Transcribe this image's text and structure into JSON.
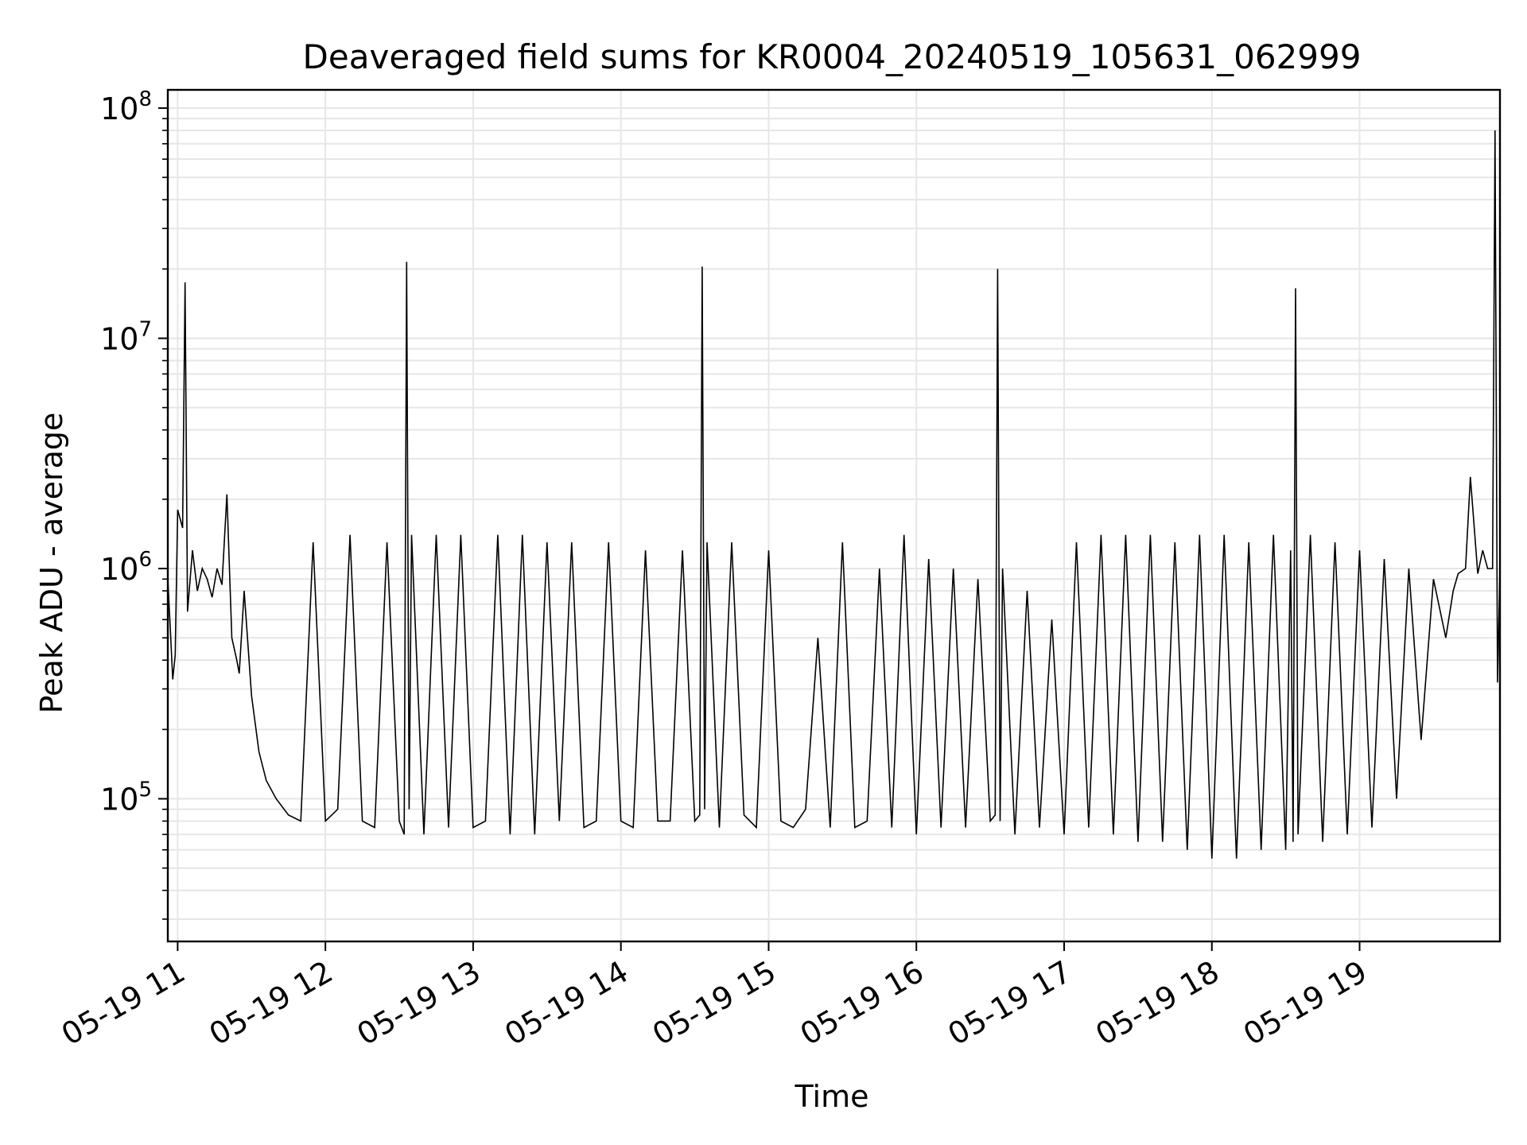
{
  "chart_data": {
    "type": "line",
    "title": "Deaveraged field sums for KR0004_20240519_105631_062999",
    "xlabel": "Time",
    "ylabel": "Peak ADU - average",
    "yscale": "log",
    "ylim": [
      24000,
      120000000
    ],
    "xlim": [
      "2024-05-19 10:56",
      "2024-05-19 19:57"
    ],
    "grid": true,
    "line_color": "#000000",
    "x_ticks": [
      {
        "value": "2024-05-19 11:00",
        "label": "05-19 11"
      },
      {
        "value": "2024-05-19 12:00",
        "label": "05-19 12"
      },
      {
        "value": "2024-05-19 13:00",
        "label": "05-19 13"
      },
      {
        "value": "2024-05-19 14:00",
        "label": "05-19 14"
      },
      {
        "value": "2024-05-19 15:00",
        "label": "05-19 15"
      },
      {
        "value": "2024-05-19 16:00",
        "label": "05-19 16"
      },
      {
        "value": "2024-05-19 17:00",
        "label": "05-19 17"
      },
      {
        "value": "2024-05-19 18:00",
        "label": "05-19 18"
      },
      {
        "value": "2024-05-19 19:00",
        "label": "05-19 19"
      }
    ],
    "y_ticks": [
      {
        "value": 100000,
        "base": "10",
        "exp": "5"
      },
      {
        "value": 1000000,
        "base": "10",
        "exp": "6"
      },
      {
        "value": 10000000,
        "base": "10",
        "exp": "7"
      },
      {
        "value": 100000000,
        "base": "10",
        "exp": "8"
      }
    ],
    "series": [
      {
        "name": "",
        "x": [
          "2024-05-19 10:56",
          "2024-05-19 10:57",
          "2024-05-19 10:58",
          "2024-05-19 10:59",
          "2024-05-19 11:00",
          "2024-05-19 11:02",
          "2024-05-19 11:03",
          "2024-05-19 11:04",
          "2024-05-19 11:06",
          "2024-05-19 11:08",
          "2024-05-19 11:10",
          "2024-05-19 11:12",
          "2024-05-19 11:14",
          "2024-05-19 11:16",
          "2024-05-19 11:18",
          "2024-05-19 11:20",
          "2024-05-19 11:22",
          "2024-05-19 11:24",
          "2024-05-19 11:25",
          "2024-05-19 11:27",
          "2024-05-19 11:30",
          "2024-05-19 11:33",
          "2024-05-19 11:36",
          "2024-05-19 11:40",
          "2024-05-19 11:45",
          "2024-05-19 11:50",
          "2024-05-19 11:55",
          "2024-05-19 12:00",
          "2024-05-19 12:05",
          "2024-05-19 12:10",
          "2024-05-19 12:15",
          "2024-05-19 12:20",
          "2024-05-19 12:25",
          "2024-05-19 12:30",
          "2024-05-19 12:32",
          "2024-05-19 12:33",
          "2024-05-19 12:34",
          "2024-05-19 12:35",
          "2024-05-19 12:40",
          "2024-05-19 12:45",
          "2024-05-19 12:50",
          "2024-05-19 12:55",
          "2024-05-19 13:00",
          "2024-05-19 13:05",
          "2024-05-19 13:10",
          "2024-05-19 13:15",
          "2024-05-19 13:20",
          "2024-05-19 13:25",
          "2024-05-19 13:30",
          "2024-05-19 13:35",
          "2024-05-19 13:40",
          "2024-05-19 13:45",
          "2024-05-19 13:50",
          "2024-05-19 13:55",
          "2024-05-19 14:00",
          "2024-05-19 14:05",
          "2024-05-19 14:10",
          "2024-05-19 14:15",
          "2024-05-19 14:20",
          "2024-05-19 14:25",
          "2024-05-19 14:30",
          "2024-05-19 14:32",
          "2024-05-19 14:33",
          "2024-05-19 14:34",
          "2024-05-19 14:35",
          "2024-05-19 14:40",
          "2024-05-19 14:45",
          "2024-05-19 14:50",
          "2024-05-19 14:55",
          "2024-05-19 15:00",
          "2024-05-19 15:05",
          "2024-05-19 15:10",
          "2024-05-19 15:15",
          "2024-05-19 15:20",
          "2024-05-19 15:25",
          "2024-05-19 15:30",
          "2024-05-19 15:35",
          "2024-05-19 15:40",
          "2024-05-19 15:45",
          "2024-05-19 15:50",
          "2024-05-19 15:55",
          "2024-05-19 16:00",
          "2024-05-19 16:05",
          "2024-05-19 16:10",
          "2024-05-19 16:15",
          "2024-05-19 16:20",
          "2024-05-19 16:25",
          "2024-05-19 16:30",
          "2024-05-19 16:32",
          "2024-05-19 16:33",
          "2024-05-19 16:34",
          "2024-05-19 16:35",
          "2024-05-19 16:40",
          "2024-05-19 16:45",
          "2024-05-19 16:50",
          "2024-05-19 16:55",
          "2024-05-19 17:00",
          "2024-05-19 17:05",
          "2024-05-19 17:10",
          "2024-05-19 17:15",
          "2024-05-19 17:20",
          "2024-05-19 17:25",
          "2024-05-19 17:30",
          "2024-05-19 17:35",
          "2024-05-19 17:40",
          "2024-05-19 17:45",
          "2024-05-19 17:50",
          "2024-05-19 17:55",
          "2024-05-19 18:00",
          "2024-05-19 18:05",
          "2024-05-19 18:10",
          "2024-05-19 18:15",
          "2024-05-19 18:20",
          "2024-05-19 18:25",
          "2024-05-19 18:30",
          "2024-05-19 18:32",
          "2024-05-19 18:33",
          "2024-05-19 18:34",
          "2024-05-19 18:35",
          "2024-05-19 18:40",
          "2024-05-19 18:45",
          "2024-05-19 18:50",
          "2024-05-19 18:55",
          "2024-05-19 19:00",
          "2024-05-19 19:05",
          "2024-05-19 19:10",
          "2024-05-19 19:15",
          "2024-05-19 19:20",
          "2024-05-19 19:25",
          "2024-05-19 19:30",
          "2024-05-19 19:35",
          "2024-05-19 19:38",
          "2024-05-19 19:40",
          "2024-05-19 19:43",
          "2024-05-19 19:45",
          "2024-05-19 19:48",
          "2024-05-19 19:50",
          "2024-05-19 19:52",
          "2024-05-19 19:54",
          "2024-05-19 19:55",
          "2024-05-19 19:56",
          "2024-05-19 19:57"
        ],
        "y": [
          900000,
          550000,
          330000,
          420000,
          1800000,
          1500000,
          17500000,
          650000,
          1200000,
          800000,
          1000000,
          900000,
          750000,
          1000000,
          850000,
          2100000,
          500000,
          400000,
          350000,
          800000,
          280000,
          160000,
          120000,
          100000,
          85000,
          80000,
          1300000,
          80000,
          90000,
          1400000,
          80000,
          75000,
          1300000,
          80000,
          70000,
          21500000,
          90000,
          1400000,
          70000,
          1400000,
          75000,
          1400000,
          75000,
          80000,
          1400000,
          70000,
          1400000,
          70000,
          1300000,
          80000,
          1300000,
          75000,
          80000,
          1300000,
          80000,
          75000,
          1200000,
          80000,
          80000,
          1200000,
          80000,
          85000,
          20500000,
          90000,
          1300000,
          75000,
          1300000,
          85000,
          75000,
          1200000,
          80000,
          75000,
          90000,
          500000,
          75000,
          1300000,
          75000,
          80000,
          1000000,
          75000,
          1400000,
          70000,
          1100000,
          75000,
          1000000,
          75000,
          900000,
          80000,
          85000,
          20000000,
          80000,
          1000000,
          70000,
          800000,
          75000,
          600000,
          70000,
          1300000,
          75000,
          1400000,
          70000,
          1400000,
          65000,
          1400000,
          65000,
          1300000,
          60000,
          1400000,
          55000,
          1400000,
          55000,
          1300000,
          60000,
          1400000,
          60000,
          1200000,
          65000,
          16500000,
          70000,
          1400000,
          65000,
          1300000,
          70000,
          1200000,
          75000,
          1100000,
          100000,
          1000000,
          180000,
          900000,
          500000,
          800000,
          950000,
          1000000,
          2500000,
          950000,
          1200000,
          1000000,
          1000000,
          80000000,
          320000,
          1000000
        ]
      }
    ]
  }
}
